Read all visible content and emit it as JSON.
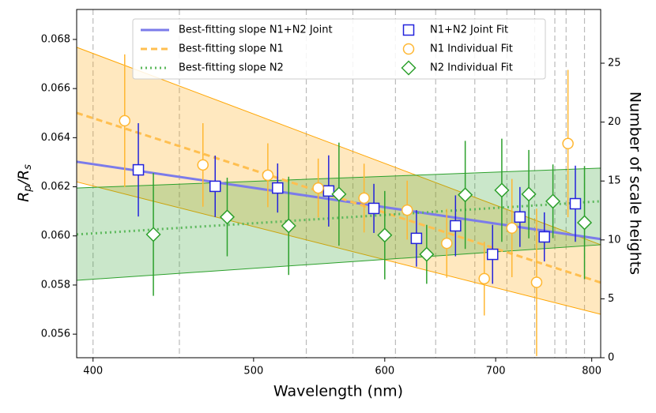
{
  "chart_data": {
    "type": "errorbar",
    "xlabel": "Wavelength (nm)",
    "ylabel": [
      "R",
      "p",
      "/R",
      "s"
    ],
    "y2label": "Number of scale heights",
    "xscale": "log",
    "xlim": [
      391,
      810
    ],
    "xticks": [
      400,
      500,
      600,
      700,
      800
    ],
    "ylim": [
      0.05504,
      0.06922
    ],
    "yticks": [
      0.056,
      0.058,
      {
        "value": 0.06,
        "label": "0.060"
      },
      0.062,
      0.064,
      0.066,
      0.068
    ],
    "y2lim": [
      0,
      29.56
    ],
    "y2ticks": [
      0,
      5,
      10,
      15,
      20,
      25
    ],
    "bin_edges": [
      400,
      451,
      538,
      574,
      609,
      644,
      680,
      711,
      739,
      760,
      772,
      792
    ],
    "fits": [
      {
        "name": "Best-fitting slope N1+N2 Joint",
        "color": "#7b7bea",
        "style": "solid",
        "x": [
          391,
          810
        ],
        "values": [
          0.06302,
          0.05987
        ]
      },
      {
        "name": "Best-fitting slope N1",
        "color": "#ffbf50",
        "style": "dashed",
        "x": [
          391,
          810
        ],
        "values": [
          0.06501,
          0.0581
        ],
        "band_lower": [
          0.0622,
          0.05681
        ],
        "band_upper": [
          0.06768,
          0.05964
        ],
        "band_color": "#ffa500"
      },
      {
        "name": "Best-fitting slope N2",
        "color": "#5cb85c",
        "style": "dotted",
        "x": [
          391,
          810
        ],
        "values": [
          0.06006,
          0.06141
        ],
        "band_lower": [
          0.05819,
          0.05964
        ],
        "band_upper": [
          0.06195,
          0.06276
        ],
        "band_color": "#2ca02c"
      }
    ],
    "series": [
      {
        "name": "N1+N2 Joint Fit",
        "color": "#2222dd",
        "marker": "square",
        "x": [
          426,
          474,
          517,
          555,
          591,
          627,
          662,
          697,
          724,
          749,
          782
        ],
        "values": [
          0.06269,
          0.06202,
          0.06195,
          0.06183,
          0.06112,
          0.0599,
          0.06041,
          0.05925,
          0.06077,
          0.05996,
          0.06131
        ],
        "errors": [
          0.0019,
          0.00125,
          0.001,
          0.00145,
          0.001,
          0.00115,
          0.00124,
          0.0012,
          0.00122,
          0.001,
          0.00155
        ]
      },
      {
        "name": "N1 Individual Fit",
        "color": "#ffb732",
        "marker": "circle",
        "x": [
          418,
          466,
          510,
          547,
          583,
          619,
          654,
          689,
          716,
          741,
          774
        ],
        "values": [
          0.06469,
          0.06289,
          0.06247,
          0.06195,
          0.06154,
          0.06105,
          0.0597,
          0.05826,
          0.06032,
          0.05811,
          0.06376
        ],
        "errors": [
          0.0027,
          0.0017,
          0.0013,
          0.0012,
          0.0014,
          0.0012,
          0.0014,
          0.0015,
          0.002,
          0.003,
          0.003
        ]
      },
      {
        "name": "N2 Individual Fit",
        "color": "#2ca02c",
        "marker": "diamond",
        "x": [
          435,
          482,
          525,
          563,
          600,
          636,
          671,
          706,
          733,
          758,
          792
        ],
        "values": [
          0.06006,
          0.06077,
          0.06041,
          0.0617,
          0.06003,
          0.05925,
          0.06167,
          0.06186,
          0.0617,
          0.06141,
          0.06054
        ],
        "errors": [
          0.0025,
          0.0016,
          0.002,
          0.0021,
          0.0018,
          0.0012,
          0.0022,
          0.0021,
          0.0018,
          0.0015,
          0.0023
        ]
      }
    ]
  }
}
